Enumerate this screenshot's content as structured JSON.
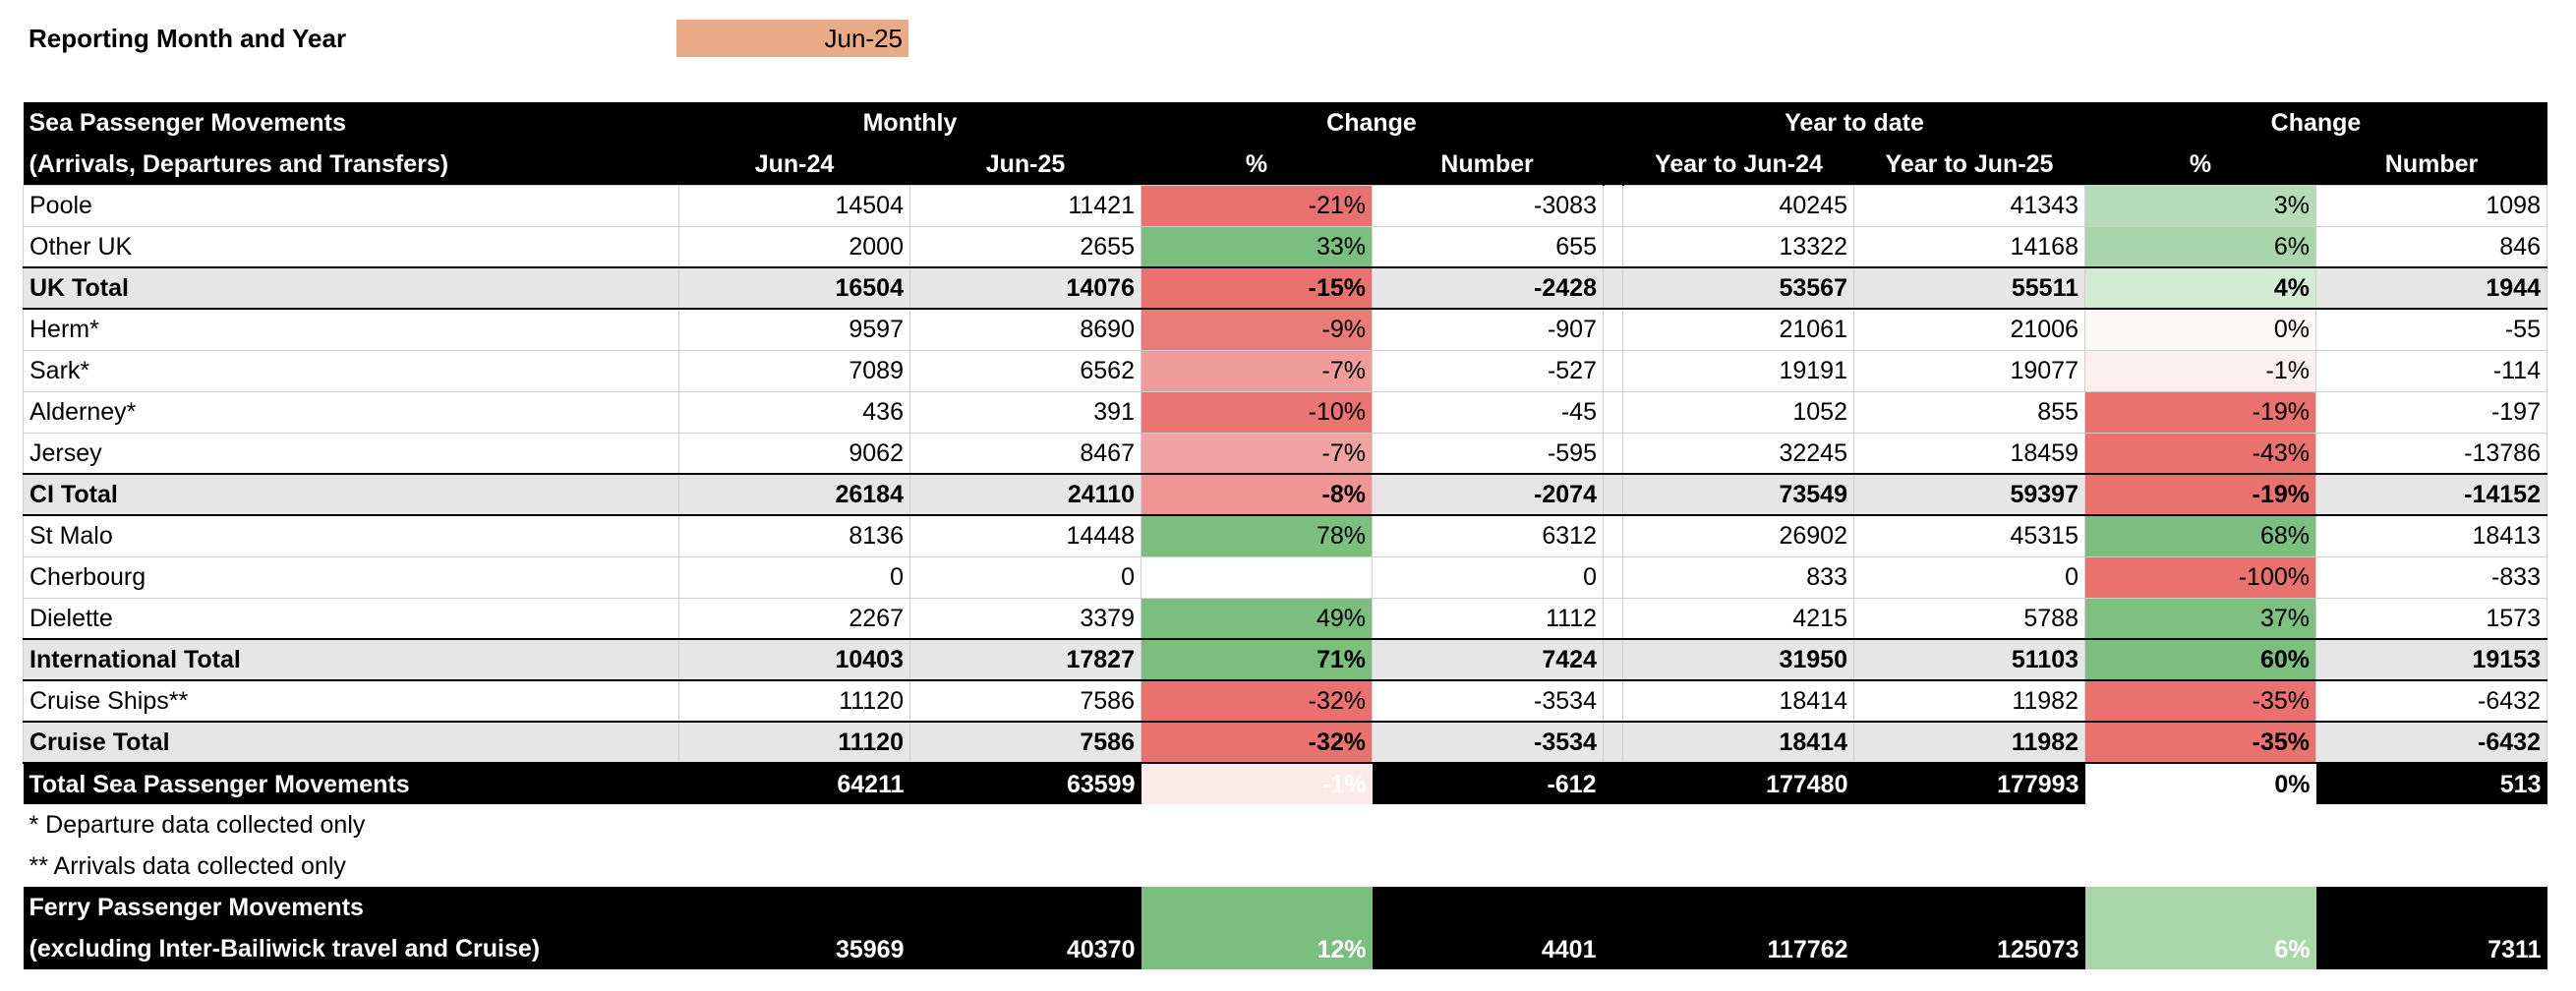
{
  "header": {
    "label": "Reporting Month and Year",
    "value": "Jun-25"
  },
  "table": {
    "header_rows": [
      [
        "Sea Passenger Movements",
        "Monthly",
        "Change",
        "Year to date",
        "Change"
      ],
      [
        "(Arrivals, Departures and Transfers)",
        "Jun-24",
        "Jun-25",
        "%",
        "Number",
        "Year to Jun-24",
        "Year to Jun-25",
        "%",
        "Number"
      ]
    ],
    "rows": [
      {
        "label": "Poole",
        "style": "plain",
        "cells": [
          14504,
          11421,
          "-21%",
          -3083,
          40245,
          41343,
          "3%",
          1098
        ],
        "colors": [
          "#e9726f",
          "#b5dcb6"
        ]
      },
      {
        "label": "Other UK",
        "style": "plain",
        "cells": [
          2000,
          2655,
          "33%",
          655,
          13322,
          14168,
          "6%",
          846
        ],
        "colors": [
          "#7bbf7f",
          "#a8d6aa"
        ]
      },
      {
        "label": "UK Total",
        "style": "total",
        "cells": [
          16504,
          14076,
          "-15%",
          -2428,
          53567,
          55511,
          "4%",
          1944
        ],
        "colors": [
          "#e9726f",
          "#d2ebd2"
        ]
      },
      {
        "label": "Herm*",
        "style": "plain",
        "cells": [
          9597,
          8690,
          "-9%",
          -907,
          21061,
          21006,
          "0%",
          -55
        ],
        "colors": [
          "#e87c79",
          "#fdf8f8"
        ]
      },
      {
        "label": "Sark*",
        "style": "plain",
        "cells": [
          7089,
          6562,
          "-7%",
          -527,
          19191,
          19077,
          "-1%",
          -114
        ],
        "colors": [
          "#ef9c9a",
          "#fcefef"
        ]
      },
      {
        "label": "Alderney*",
        "style": "plain",
        "cells": [
          436,
          391,
          "-10%",
          -45,
          1052,
          855,
          "-19%",
          -197
        ],
        "colors": [
          "#ea7472",
          "#e9726f"
        ]
      },
      {
        "label": "Jersey",
        "style": "plain",
        "cells": [
          9062,
          8467,
          "-7%",
          -595,
          32245,
          18459,
          "-43%",
          -13786
        ],
        "colors": [
          "#f0a3a1",
          "#e9726f"
        ]
      },
      {
        "label": "CI Total",
        "style": "total",
        "cells": [
          26184,
          24110,
          "-8%",
          -2074,
          73549,
          59397,
          "-19%",
          -14152
        ],
        "colors": [
          "#ef9593",
          "#e9726f"
        ]
      },
      {
        "label": "St Malo",
        "style": "plain",
        "cells": [
          8136,
          14448,
          "78%",
          6312,
          26902,
          45315,
          "68%",
          18413
        ],
        "colors": [
          "#7bbf7f",
          "#7bbf7f"
        ]
      },
      {
        "label": "Cherbourg",
        "style": "plain",
        "cells": [
          0,
          0,
          null,
          0,
          833,
          0,
          "-100%",
          -833
        ],
        "colors": [
          "#ffffff",
          "#e9726f"
        ]
      },
      {
        "label": "Dielette",
        "style": "plain",
        "cells": [
          2267,
          3379,
          "49%",
          1112,
          4215,
          5788,
          "37%",
          1573
        ],
        "colors": [
          "#7bbf7f",
          "#7dc081"
        ]
      },
      {
        "label": "International Total",
        "style": "total",
        "cells": [
          10403,
          17827,
          "71%",
          7424,
          31950,
          51103,
          "60%",
          19153
        ],
        "colors": [
          "#7bbf7f",
          "#7bbf7f"
        ]
      },
      {
        "label": "Cruise Ships**",
        "style": "plain",
        "cells": [
          11120,
          7586,
          "-32%",
          -3534,
          18414,
          11982,
          "-35%",
          -6432
        ],
        "colors": [
          "#e9726f",
          "#e9726f"
        ]
      },
      {
        "label": "Cruise Total",
        "style": "total",
        "cells": [
          11120,
          7586,
          "-32%",
          -3534,
          18414,
          11982,
          "-35%",
          -6432
        ],
        "colors": [
          "#e9726f",
          "#e9726f"
        ]
      },
      {
        "label": "Total Sea Passenger Movements",
        "style": "grand",
        "cells": [
          64211,
          63599,
          "-1%",
          -612,
          177480,
          177993,
          "0%",
          513
        ],
        "colors": [
          "#fbeaea",
          "#ffffff"
        ]
      }
    ],
    "notes": [
      "* Departure data collected only",
      "** Arrivals data collected only"
    ],
    "ferry": {
      "label": [
        "Ferry Passenger Movements",
        "(excluding Inter-Bailiwick travel and Cruise)"
      ],
      "cells": [
        35969,
        40370,
        "12%",
        4401,
        117762,
        125073,
        "6%",
        7311
      ],
      "colors": [
        "#7bbf7f",
        "#a9d7aa"
      ]
    }
  }
}
